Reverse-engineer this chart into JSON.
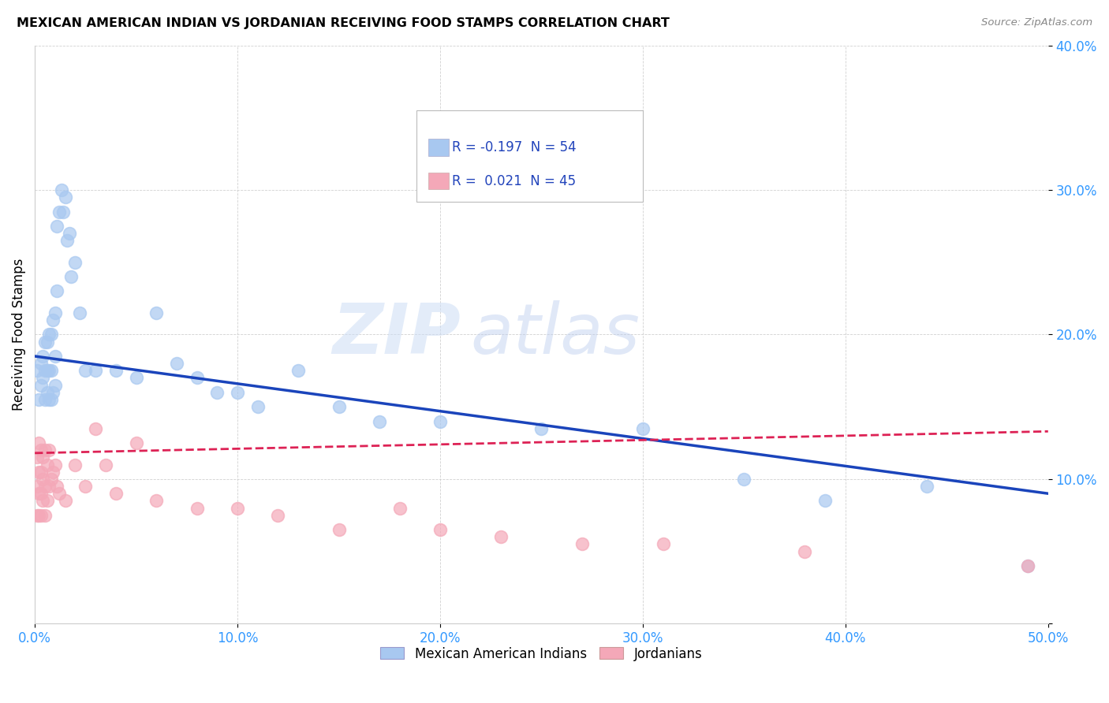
{
  "title": "MEXICAN AMERICAN INDIAN VS JORDANIAN RECEIVING FOOD STAMPS CORRELATION CHART",
  "source": "Source: ZipAtlas.com",
  "ylabel": "Receiving Food Stamps",
  "xlabel": "",
  "xlim": [
    0,
    0.5
  ],
  "ylim": [
    0,
    0.4
  ],
  "xticks": [
    0.0,
    0.1,
    0.2,
    0.3,
    0.4,
    0.5
  ],
  "yticks": [
    0.0,
    0.1,
    0.2,
    0.3,
    0.4
  ],
  "xtick_labels": [
    "0.0%",
    "10.0%",
    "20.0%",
    "30.0%",
    "40.0%",
    "50.0%"
  ],
  "ytick_labels": [
    "",
    "10.0%",
    "20.0%",
    "30.0%",
    "40.0%"
  ],
  "blue_r": -0.197,
  "blue_n": 54,
  "pink_r": 0.021,
  "pink_n": 45,
  "legend_label_blue": "Mexican American Indians",
  "legend_label_pink": "Jordanians",
  "blue_color": "#a8c8f0",
  "pink_color": "#f4a8b8",
  "blue_line_color": "#1a44bb",
  "pink_line_color": "#dd2255",
  "watermark_zip": "ZIP",
  "watermark_atlas": "atlas",
  "blue_x": [
    0.001,
    0.002,
    0.003,
    0.003,
    0.004,
    0.004,
    0.005,
    0.005,
    0.005,
    0.006,
    0.006,
    0.006,
    0.007,
    0.007,
    0.007,
    0.008,
    0.008,
    0.008,
    0.009,
    0.009,
    0.01,
    0.01,
    0.01,
    0.011,
    0.011,
    0.012,
    0.013,
    0.014,
    0.015,
    0.016,
    0.017,
    0.018,
    0.02,
    0.022,
    0.025,
    0.03,
    0.04,
    0.05,
    0.06,
    0.07,
    0.08,
    0.09,
    0.1,
    0.11,
    0.13,
    0.15,
    0.17,
    0.2,
    0.25,
    0.3,
    0.35,
    0.39,
    0.44,
    0.49
  ],
  "blue_y": [
    0.175,
    0.155,
    0.165,
    0.18,
    0.17,
    0.185,
    0.155,
    0.175,
    0.195,
    0.16,
    0.175,
    0.195,
    0.155,
    0.175,
    0.2,
    0.155,
    0.175,
    0.2,
    0.16,
    0.21,
    0.165,
    0.185,
    0.215,
    0.23,
    0.275,
    0.285,
    0.3,
    0.285,
    0.295,
    0.265,
    0.27,
    0.24,
    0.25,
    0.215,
    0.175,
    0.175,
    0.175,
    0.17,
    0.215,
    0.18,
    0.17,
    0.16,
    0.16,
    0.15,
    0.175,
    0.15,
    0.14,
    0.14,
    0.135,
    0.135,
    0.1,
    0.085,
    0.095,
    0.04
  ],
  "pink_x": [
    0.001,
    0.001,
    0.001,
    0.002,
    0.002,
    0.002,
    0.002,
    0.003,
    0.003,
    0.003,
    0.003,
    0.004,
    0.004,
    0.004,
    0.005,
    0.005,
    0.005,
    0.006,
    0.006,
    0.007,
    0.007,
    0.008,
    0.009,
    0.01,
    0.011,
    0.012,
    0.015,
    0.02,
    0.025,
    0.03,
    0.035,
    0.04,
    0.05,
    0.06,
    0.08,
    0.1,
    0.12,
    0.15,
    0.18,
    0.2,
    0.23,
    0.27,
    0.31,
    0.38,
    0.49
  ],
  "pink_y": [
    0.115,
    0.095,
    0.075,
    0.125,
    0.105,
    0.09,
    0.075,
    0.12,
    0.105,
    0.09,
    0.075,
    0.115,
    0.1,
    0.085,
    0.12,
    0.095,
    0.075,
    0.11,
    0.085,
    0.12,
    0.095,
    0.1,
    0.105,
    0.11,
    0.095,
    0.09,
    0.085,
    0.11,
    0.095,
    0.135,
    0.11,
    0.09,
    0.125,
    0.085,
    0.08,
    0.08,
    0.075,
    0.065,
    0.08,
    0.065,
    0.06,
    0.055,
    0.055,
    0.05,
    0.04
  ]
}
